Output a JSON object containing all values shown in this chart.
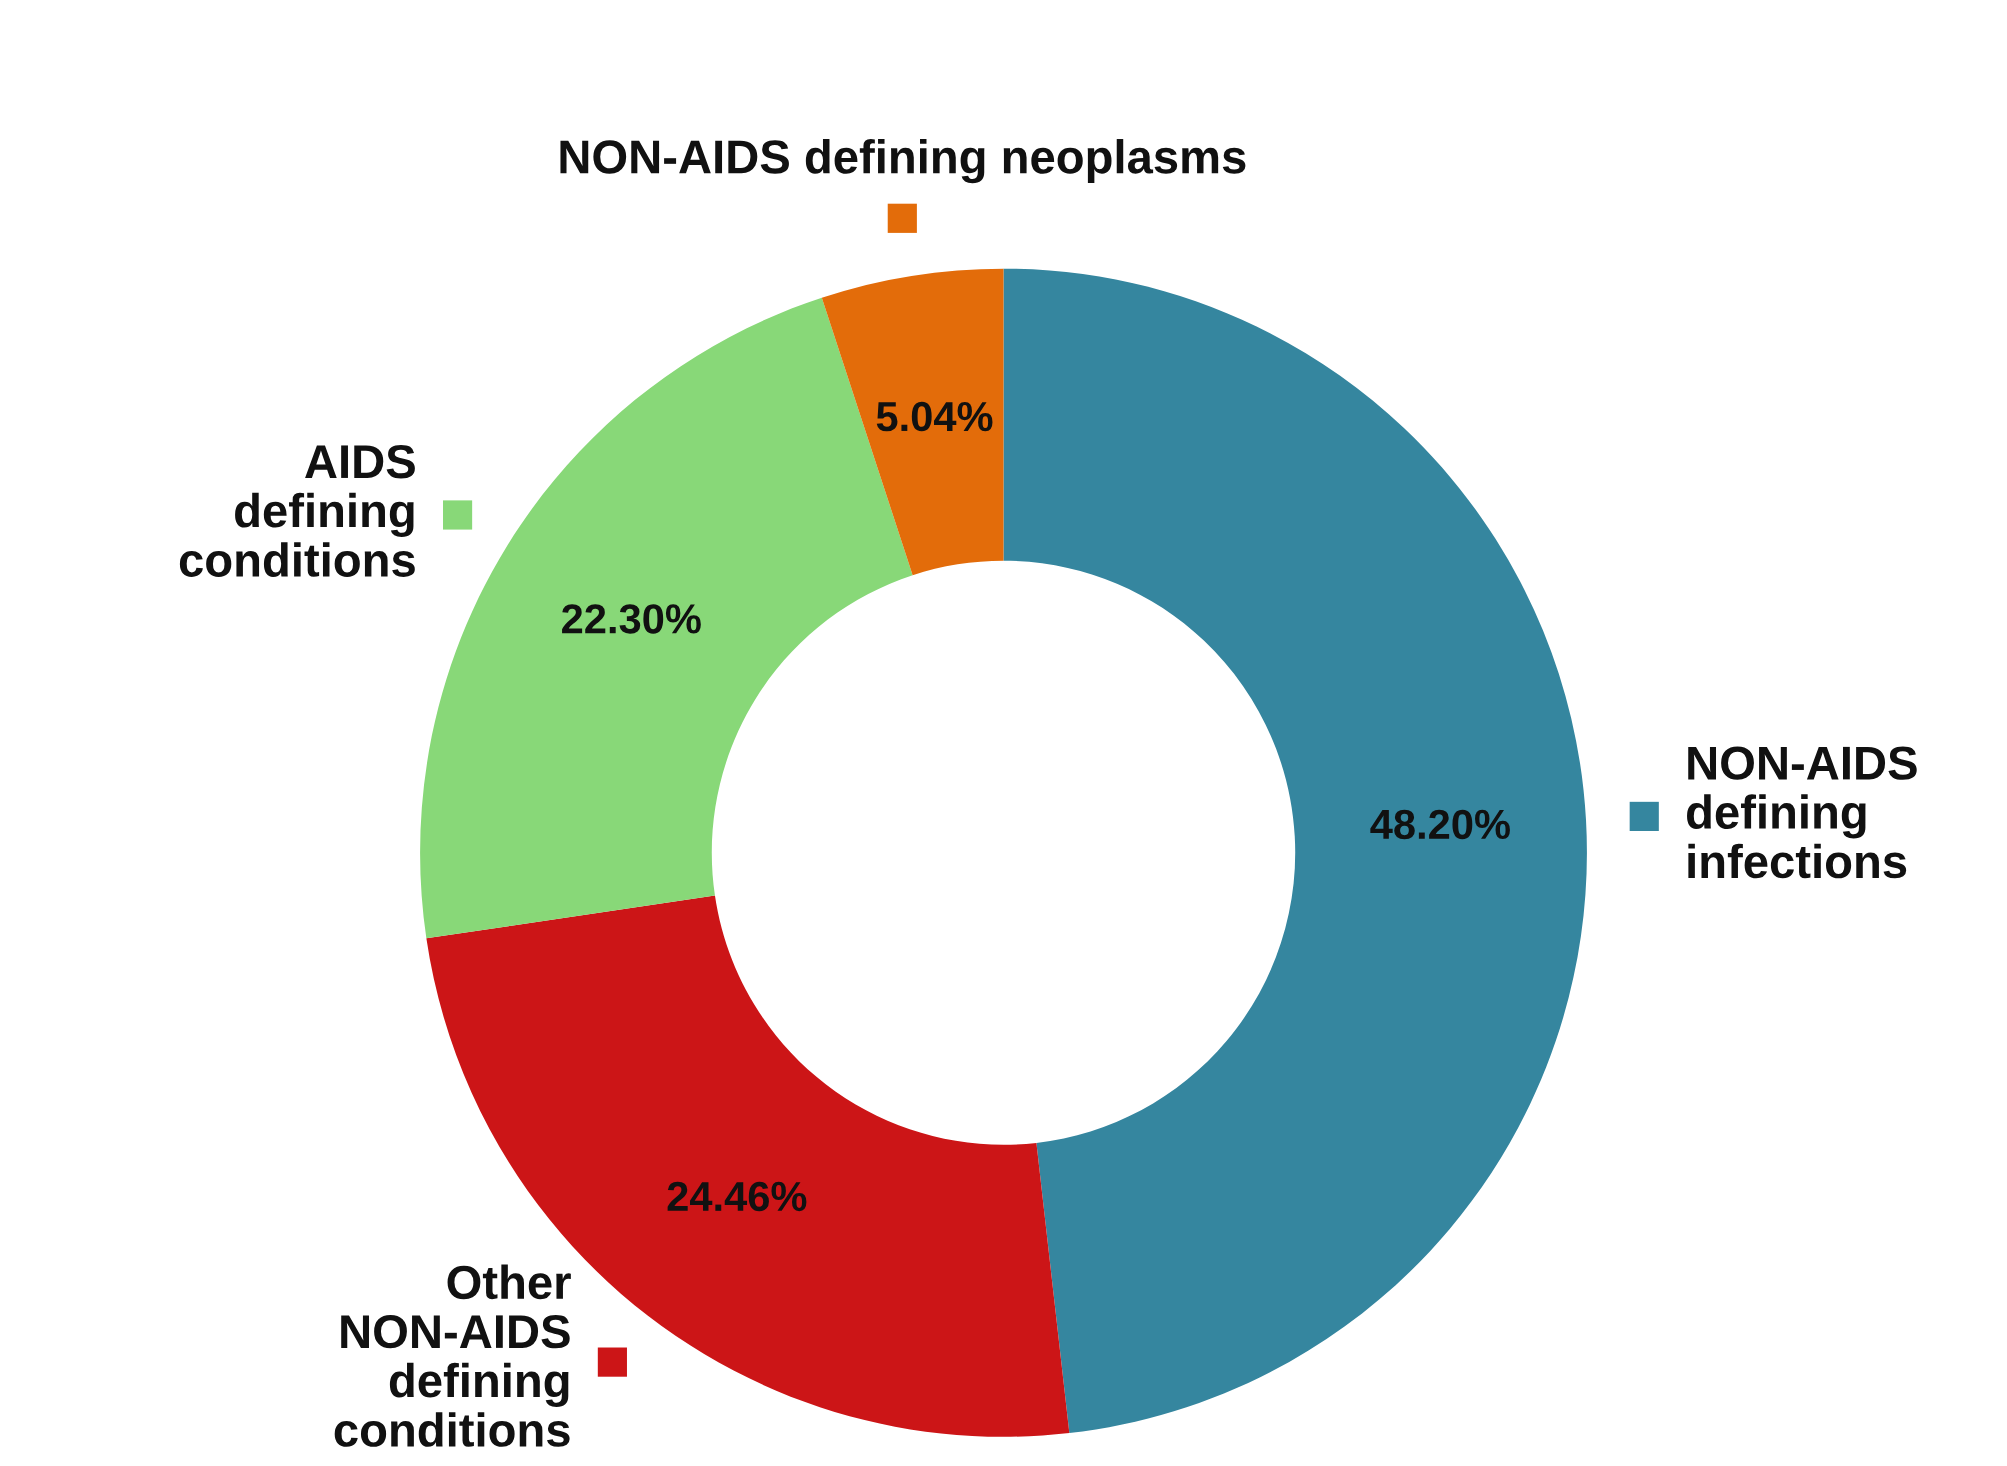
{
  "chart_data": {
    "type": "donut",
    "categories": [
      "NON-AIDS\ndefining\ninfections",
      "Other\nNON-AIDS\ndefining\nconditions",
      "AIDS\ndefining\nconditions",
      "NON-AIDS defining neoplasms"
    ],
    "values": [
      48.2,
      24.46,
      22.3,
      5.04
    ],
    "colors": [
      "#35869f",
      "#cc1517",
      "#88d878",
      "#e36c0a"
    ],
    "value_labels": [
      "48.20%",
      "24.46%",
      "22.30%",
      "5.04%"
    ],
    "legend": "left"
  }
}
